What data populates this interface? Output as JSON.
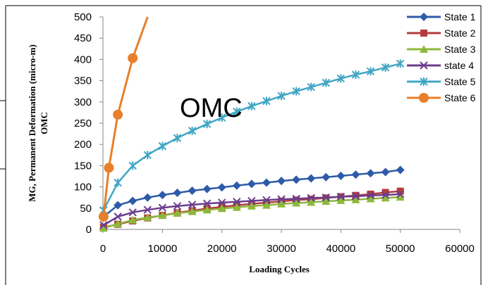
{
  "chart_data": {
    "type": "line",
    "overlay_text": "OMC",
    "ylabel": "MG, Permanent Deformation (micro-m)",
    "ylabel2": "OMC",
    "xlabel": "Loading Cycles",
    "xlim": [
      0,
      60000
    ],
    "ylim": [
      0,
      500
    ],
    "xticks": [
      0,
      10000,
      20000,
      30000,
      40000,
      50000,
      60000
    ],
    "yticks": [
      0,
      50,
      100,
      150,
      200,
      250,
      300,
      350,
      400,
      450,
      500
    ],
    "grid": false,
    "legend_position": "top-right",
    "series": [
      {
        "name": "State 1",
        "color": "#2E5AA8",
        "marker": "diamond",
        "x": [
          100,
          2500,
          5000,
          7500,
          10000,
          12500,
          15000,
          17500,
          20000,
          22500,
          25000,
          27500,
          30000,
          32500,
          35000,
          37500,
          40000,
          42500,
          45000,
          47500,
          50000
        ],
        "y": [
          30,
          57,
          67,
          75,
          81,
          86,
          91,
          95,
          99,
          103,
          107,
          110,
          114,
          117,
          120,
          123,
          126,
          129,
          132,
          135,
          140
        ]
      },
      {
        "name": "State 2",
        "color": "#B33C3A",
        "marker": "square",
        "x": [
          100,
          2500,
          5000,
          7500,
          10000,
          12500,
          15000,
          17500,
          20000,
          22500,
          25000,
          27500,
          30000,
          32500,
          35000,
          37500,
          40000,
          42500,
          45000,
          47500,
          50000
        ],
        "y": [
          5,
          12,
          20,
          27,
          33,
          39,
          44,
          49,
          53,
          57,
          60,
          63,
          66,
          69,
          71,
          74,
          77,
          80,
          83,
          87,
          90
        ]
      },
      {
        "name": "State 3",
        "color": "#8CB83C",
        "marker": "triangle",
        "x": [
          100,
          2500,
          5000,
          7500,
          10000,
          12500,
          15000,
          17500,
          20000,
          22500,
          25000,
          27500,
          30000,
          32500,
          35000,
          37500,
          40000,
          42500,
          45000,
          47500,
          50000
        ],
        "y": [
          3,
          13,
          22,
          28,
          33,
          38,
          42,
          46,
          49,
          52,
          55,
          57,
          60,
          62,
          64,
          66,
          68,
          70,
          72,
          74,
          76
        ]
      },
      {
        "name": "state 4",
        "color": "#6B3D8E",
        "marker": "x",
        "x": [
          100,
          2500,
          5000,
          7500,
          10000,
          12500,
          15000,
          17500,
          20000,
          22500,
          25000,
          27500,
          30000,
          32500,
          35000,
          37500,
          40000,
          42500,
          45000,
          47500,
          50000
        ],
        "y": [
          10,
          30,
          40,
          46,
          51,
          55,
          58,
          61,
          63,
          65,
          67,
          69,
          71,
          72,
          74,
          75,
          77,
          78,
          80,
          81,
          83
        ]
      },
      {
        "name": "State 5",
        "color": "#40A6C4",
        "marker": "star",
        "x": [
          100,
          2500,
          5000,
          7500,
          10000,
          12500,
          15000,
          17500,
          20000,
          22500,
          25000,
          27500,
          30000,
          32500,
          35000,
          37500,
          40000,
          42500,
          45000,
          47500,
          50000
        ],
        "y": [
          45,
          110,
          150,
          175,
          196,
          215,
          232,
          248,
          263,
          277,
          290,
          302,
          314,
          325,
          335,
          345,
          355,
          364,
          372,
          381,
          390
        ]
      },
      {
        "name": "State 6",
        "color": "#E87F2A",
        "marker": "circle",
        "x": [
          100,
          1000,
          2500,
          5000,
          7500
        ],
        "y": [
          30,
          145,
          270,
          403,
          500
        ]
      }
    ]
  }
}
